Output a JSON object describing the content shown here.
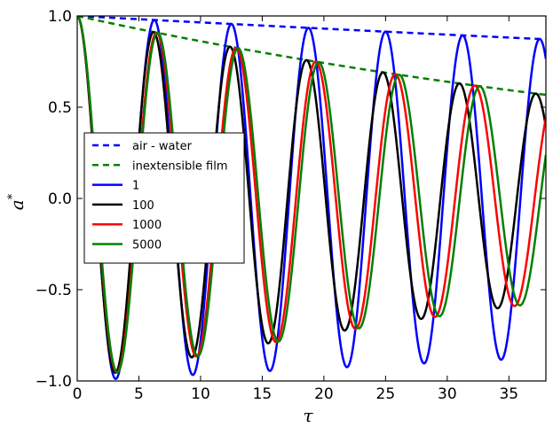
{
  "chart_data": {
    "type": "line",
    "xlabel": "τ",
    "ylabel": "a",
    "ylabel_sup": "*",
    "xlim": [
      0,
      38
    ],
    "ylim": [
      -1.0,
      1.0
    ],
    "x_ticks": [
      0,
      5,
      10,
      15,
      20,
      25,
      30,
      35
    ],
    "x_tick_labels": [
      "0",
      "5",
      "10",
      "15",
      "20",
      "25",
      "30",
      "35"
    ],
    "y_ticks": [
      -1.0,
      -0.5,
      0.0,
      0.5,
      1.0
    ],
    "y_tick_labels": [
      "−1.0",
      "−0.5",
      "0.0",
      "0.5",
      "1.0"
    ],
    "grid": false,
    "legend_position": "center-left",
    "series": [
      {
        "name": "air - water",
        "color": "#0000ff",
        "dash": true,
        "kind": "envelope",
        "decay": 0.0036
      },
      {
        "name": "inextensible film",
        "color": "#008000",
        "dash": true,
        "kind": "envelope",
        "decay": 0.0149
      },
      {
        "name": "1",
        "color": "#0000ff",
        "dash": false,
        "kind": "oscillation",
        "period": 6.25,
        "decay": 0.0036
      },
      {
        "name": "100",
        "color": "#000000",
        "dash": false,
        "kind": "oscillation",
        "period": 6.2,
        "decay": 0.0149
      },
      {
        "name": "1000",
        "color": "#ff0000",
        "dash": false,
        "kind": "oscillation",
        "period": 6.45,
        "decay": 0.0149
      },
      {
        "name": "5000",
        "color": "#008000",
        "dash": false,
        "kind": "oscillation",
        "period": 6.53,
        "decay": 0.0149
      }
    ]
  }
}
